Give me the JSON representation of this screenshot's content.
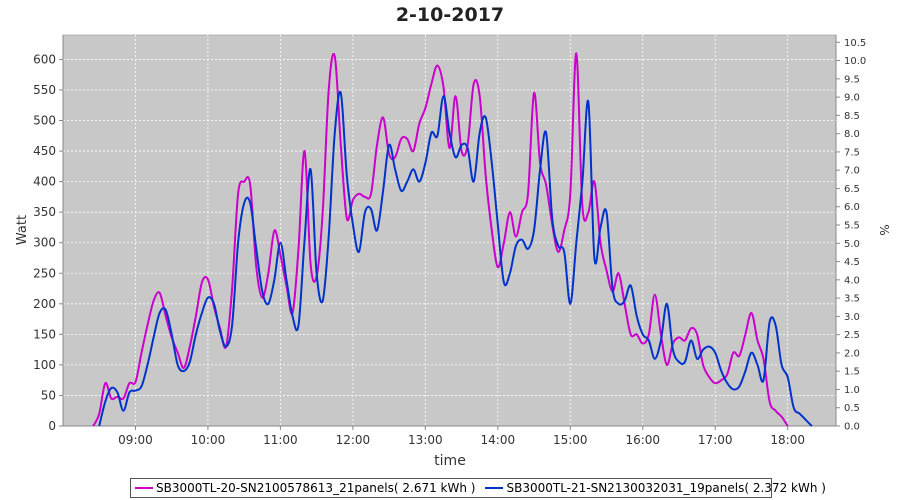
{
  "chart_data": {
    "type": "line",
    "title": "2-10-2017",
    "xlabel": "time",
    "ylabel": "Watt",
    "y2label": "%",
    "x_ticks": [
      "09:00",
      "10:00",
      "11:00",
      "12:00",
      "13:00",
      "14:00",
      "15:00",
      "16:00",
      "17:00",
      "18:00"
    ],
    "y_ticks": [
      0,
      50,
      100,
      150,
      200,
      250,
      300,
      350,
      400,
      450,
      500,
      550,
      600
    ],
    "y2_ticks": [
      "0.0",
      "0.5",
      "1.0",
      "1.5",
      "2.0",
      "2.5",
      "3.0",
      "3.5",
      "4.0",
      "4.5",
      "5.0",
      "5.5",
      "6.0",
      "6.5",
      "7.0",
      "7.5",
      "8.0",
      "8.5",
      "9.0",
      "9.5",
      "10.0",
      "10.5"
    ],
    "xlim": [
      "08:00",
      "18:40"
    ],
    "ylim": [
      0,
      640
    ],
    "y2lim": [
      0,
      10.7
    ],
    "grid": true,
    "legend_position": "bottom",
    "series": [
      {
        "name": "SB3000TL-20-SN2100578613_21panels( 2.671 kWh )",
        "color": "#cc00cc",
        "points": [
          [
            "08:25",
            0
          ],
          [
            "08:30",
            20
          ],
          [
            "08:35",
            70
          ],
          [
            "08:40",
            45
          ],
          [
            "08:45",
            48
          ],
          [
            "08:50",
            45
          ],
          [
            "08:55",
            70
          ],
          [
            "09:00",
            72
          ],
          [
            "09:05",
            120
          ],
          [
            "09:10",
            165
          ],
          [
            "09:15",
            205
          ],
          [
            "09:20",
            218
          ],
          [
            "09:25",
            180
          ],
          [
            "09:30",
            145
          ],
          [
            "09:35",
            120
          ],
          [
            "09:40",
            95
          ],
          [
            "09:45",
            130
          ],
          [
            "09:50",
            180
          ],
          [
            "09:55",
            235
          ],
          [
            "10:00",
            240
          ],
          [
            "10:05",
            195
          ],
          [
            "10:10",
            160
          ],
          [
            "10:15",
            130
          ],
          [
            "10:20",
            225
          ],
          [
            "10:25",
            380
          ],
          [
            "10:30",
            400
          ],
          [
            "10:35",
            395
          ],
          [
            "10:40",
            260
          ],
          [
            "10:45",
            210
          ],
          [
            "10:50",
            250
          ],
          [
            "10:55",
            320
          ],
          [
            "11:00",
            280
          ],
          [
            "11:05",
            230
          ],
          [
            "11:10",
            185
          ],
          [
            "11:15",
            290
          ],
          [
            "11:20",
            450
          ],
          [
            "11:25",
            265
          ],
          [
            "11:30",
            245
          ],
          [
            "11:35",
            350
          ],
          [
            "11:40",
            550
          ],
          [
            "11:45",
            605
          ],
          [
            "11:50",
            460
          ],
          [
            "11:55",
            340
          ],
          [
            "12:00",
            370
          ],
          [
            "12:05",
            380
          ],
          [
            "12:10",
            375
          ],
          [
            "12:15",
            380
          ],
          [
            "12:20",
            460
          ],
          [
            "12:25",
            505
          ],
          [
            "12:30",
            445
          ],
          [
            "12:35",
            440
          ],
          [
            "12:40",
            470
          ],
          [
            "12:45",
            470
          ],
          [
            "12:50",
            450
          ],
          [
            "12:55",
            495
          ],
          [
            "13:00",
            520
          ],
          [
            "13:05",
            560
          ],
          [
            "13:10",
            590
          ],
          [
            "13:15",
            555
          ],
          [
            "13:20",
            455
          ],
          [
            "13:25",
            540
          ],
          [
            "13:30",
            450
          ],
          [
            "13:35",
            460
          ],
          [
            "13:40",
            560
          ],
          [
            "13:45",
            540
          ],
          [
            "13:50",
            410
          ],
          [
            "13:55",
            320
          ],
          [
            "14:00",
            260
          ],
          [
            "14:05",
            300
          ],
          [
            "14:10",
            350
          ],
          [
            "14:15",
            310
          ],
          [
            "14:20",
            350
          ],
          [
            "14:25",
            380
          ],
          [
            "14:30",
            545
          ],
          [
            "14:35",
            430
          ],
          [
            "14:40",
            395
          ],
          [
            "14:45",
            330
          ],
          [
            "14:50",
            285
          ],
          [
            "14:55",
            320
          ],
          [
            "15:00",
            380
          ],
          [
            "15:05",
            610
          ],
          [
            "15:10",
            360
          ],
          [
            "15:15",
            350
          ],
          [
            "15:20",
            400
          ],
          [
            "15:25",
            300
          ],
          [
            "15:30",
            255
          ],
          [
            "15:35",
            220
          ],
          [
            "15:40",
            250
          ],
          [
            "15:45",
            200
          ],
          [
            "15:50",
            150
          ],
          [
            "15:55",
            150
          ],
          [
            "16:00",
            135
          ],
          [
            "16:05",
            150
          ],
          [
            "16:10",
            215
          ],
          [
            "16:15",
            150
          ],
          [
            "16:20",
            100
          ],
          [
            "16:25",
            135
          ],
          [
            "16:30",
            145
          ],
          [
            "16:35",
            140
          ],
          [
            "16:40",
            160
          ],
          [
            "16:45",
            150
          ],
          [
            "16:50",
            100
          ],
          [
            "16:55",
            80
          ],
          [
            "17:00",
            70
          ],
          [
            "17:05",
            75
          ],
          [
            "17:10",
            85
          ],
          [
            "17:15",
            120
          ],
          [
            "17:20",
            115
          ],
          [
            "17:25",
            150
          ],
          [
            "17:30",
            185
          ],
          [
            "17:35",
            140
          ],
          [
            "17:40",
            110
          ],
          [
            "17:45",
            40
          ],
          [
            "17:50",
            25
          ],
          [
            "17:55",
            15
          ],
          [
            "18:00",
            0
          ]
        ]
      },
      {
        "name": "SB3000TL-21-SN2130032031_19panels( 2.372 kWh )",
        "color": "#0033cc",
        "points": [
          [
            "08:30",
            0
          ],
          [
            "08:35",
            40
          ],
          [
            "08:40",
            62
          ],
          [
            "08:45",
            55
          ],
          [
            "08:50",
            25
          ],
          [
            "08:55",
            55
          ],
          [
            "09:00",
            58
          ],
          [
            "09:05",
            65
          ],
          [
            "09:10",
            100
          ],
          [
            "09:15",
            145
          ],
          [
            "09:20",
            185
          ],
          [
            "09:25",
            190
          ],
          [
            "09:30",
            150
          ],
          [
            "09:35",
            100
          ],
          [
            "09:40",
            90
          ],
          [
            "09:45",
            105
          ],
          [
            "09:50",
            150
          ],
          [
            "09:55",
            185
          ],
          [
            "10:00",
            210
          ],
          [
            "10:05",
            200
          ],
          [
            "10:10",
            155
          ],
          [
            "10:15",
            130
          ],
          [
            "10:20",
            165
          ],
          [
            "10:25",
            300
          ],
          [
            "10:30",
            365
          ],
          [
            "10:35",
            365
          ],
          [
            "10:40",
            290
          ],
          [
            "10:45",
            220
          ],
          [
            "10:50",
            200
          ],
          [
            "10:55",
            240
          ],
          [
            "11:00",
            300
          ],
          [
            "11:05",
            240
          ],
          [
            "11:10",
            180
          ],
          [
            "11:15",
            165
          ],
          [
            "11:20",
            305
          ],
          [
            "11:25",
            420
          ],
          [
            "11:30",
            250
          ],
          [
            "11:35",
            205
          ],
          [
            "11:40",
            310
          ],
          [
            "11:45",
            480
          ],
          [
            "11:50",
            545
          ],
          [
            "11:55",
            410
          ],
          [
            "12:00",
            330
          ],
          [
            "12:05",
            285
          ],
          [
            "12:10",
            350
          ],
          [
            "12:15",
            355
          ],
          [
            "12:20",
            320
          ],
          [
            "12:25",
            385
          ],
          [
            "12:30",
            460
          ],
          [
            "12:35",
            420
          ],
          [
            "12:40",
            385
          ],
          [
            "12:45",
            400
          ],
          [
            "12:50",
            420
          ],
          [
            "12:55",
            400
          ],
          [
            "13:00",
            430
          ],
          [
            "13:05",
            480
          ],
          [
            "13:10",
            475
          ],
          [
            "13:15",
            540
          ],
          [
            "13:20",
            480
          ],
          [
            "13:25",
            440
          ],
          [
            "13:30",
            460
          ],
          [
            "13:35",
            455
          ],
          [
            "13:40",
            400
          ],
          [
            "13:45",
            480
          ],
          [
            "13:50",
            505
          ],
          [
            "13:55",
            430
          ],
          [
            "14:00",
            330
          ],
          [
            "14:05",
            235
          ],
          [
            "14:10",
            250
          ],
          [
            "14:15",
            295
          ],
          [
            "14:20",
            305
          ],
          [
            "14:25",
            290
          ],
          [
            "14:30",
            320
          ],
          [
            "14:35",
            420
          ],
          [
            "14:40",
            480
          ],
          [
            "14:45",
            340
          ],
          [
            "14:50",
            295
          ],
          [
            "14:55",
            285
          ],
          [
            "15:00",
            200
          ],
          [
            "15:05",
            300
          ],
          [
            "15:10",
            400
          ],
          [
            "15:15",
            530
          ],
          [
            "15:20",
            275
          ],
          [
            "15:25",
            325
          ],
          [
            "15:30",
            350
          ],
          [
            "15:35",
            225
          ],
          [
            "15:40",
            200
          ],
          [
            "15:45",
            205
          ],
          [
            "15:50",
            230
          ],
          [
            "15:55",
            180
          ],
          [
            "16:00",
            150
          ],
          [
            "16:05",
            140
          ],
          [
            "16:10",
            110
          ],
          [
            "16:15",
            140
          ],
          [
            "16:20",
            200
          ],
          [
            "16:25",
            125
          ],
          [
            "16:30",
            105
          ],
          [
            "16:35",
            105
          ],
          [
            "16:40",
            140
          ],
          [
            "16:45",
            110
          ],
          [
            "16:50",
            125
          ],
          [
            "16:55",
            130
          ],
          [
            "17:00",
            120
          ],
          [
            "17:05",
            90
          ],
          [
            "17:10",
            70
          ],
          [
            "17:15",
            60
          ],
          [
            "17:20",
            65
          ],
          [
            "17:25",
            90
          ],
          [
            "17:30",
            120
          ],
          [
            "17:35",
            100
          ],
          [
            "17:40",
            75
          ],
          [
            "17:45",
            170
          ],
          [
            "17:50",
            165
          ],
          [
            "17:55",
            100
          ],
          [
            "18:00",
            80
          ],
          [
            "18:05",
            30
          ],
          [
            "18:10",
            20
          ],
          [
            "18:15",
            10
          ],
          [
            "18:20",
            0
          ]
        ]
      }
    ]
  }
}
